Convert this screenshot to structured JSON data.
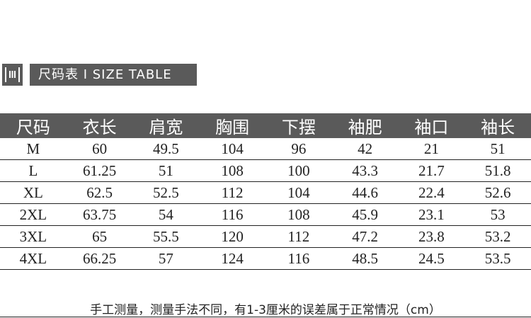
{
  "title": "尺码表 I SIZE TABLE",
  "icon": "ruler-icon",
  "colors": {
    "header_bg": "#5a5a5a",
    "header_text": "#ffffff"
  },
  "table": {
    "headers": [
      "尺码",
      "衣长",
      "肩宽",
      "胸围",
      "下摆",
      "袖肥",
      "袖口",
      "袖长"
    ],
    "rows": [
      [
        "M",
        "60",
        "49.5",
        "104",
        "96",
        "42",
        "21",
        "51"
      ],
      [
        "L",
        "61.25",
        "51",
        "108",
        "100",
        "43.3",
        "21.7",
        "51.8"
      ],
      [
        "XL",
        "62.5",
        "52.5",
        "112",
        "104",
        "44.6",
        "22.4",
        "52.6"
      ],
      [
        "2XL",
        "63.75",
        "54",
        "116",
        "108",
        "45.9",
        "23.1",
        "53"
      ],
      [
        "3XL",
        "65",
        "55.5",
        "120",
        "112",
        "47.2",
        "23.8",
        "53.2"
      ],
      [
        "4XL",
        "66.25",
        "57",
        "124",
        "116",
        "48.5",
        "24.5",
        "53.5"
      ]
    ]
  },
  "note": "手工测量，测量手法不同，有1-3厘米的误差属于正常情况（cm）"
}
